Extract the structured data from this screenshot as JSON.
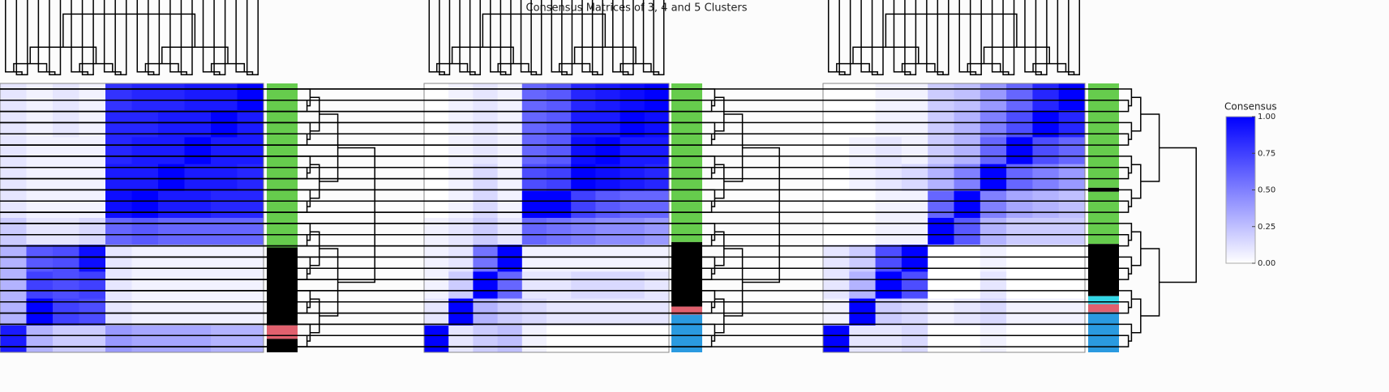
{
  "chart_data": {
    "type": "heatmap",
    "title": "Consensus Matrices of 3, 4 and 5 Clusters",
    "colorscale": {
      "title": "Consensus",
      "colors": [
        "#ffffff",
        "#0000ff"
      ],
      "lim": [
        0,
        1
      ],
      "ticks": [
        {
          "value": 0,
          "label": "0.00"
        },
        {
          "value": 0.25,
          "label": "0.25"
        },
        {
          "value": 0.5,
          "label": "0.50"
        },
        {
          "value": 0.75,
          "label": "0.75"
        },
        {
          "value": 1,
          "label": "1.00"
        }
      ]
    },
    "panels": [
      {
        "matrix": [
          [
            0.1,
            0.05,
            0.1,
            0.05,
            0.8,
            0.85,
            0.85,
            0.9,
            0.9,
            1
          ],
          [
            0.1,
            0.05,
            0.1,
            0.05,
            0.85,
            0.85,
            0.9,
            0.9,
            1,
            0.9
          ],
          [
            0.1,
            0.05,
            0.05,
            0.05,
            0.85,
            0.9,
            0.9,
            1,
            0.9,
            0.9
          ],
          [
            0.1,
            0.05,
            0.05,
            0.05,
            0.9,
            0.9,
            1,
            0.9,
            0.9,
            0.85
          ],
          [
            0.1,
            0.05,
            0.05,
            0.05,
            0.95,
            1,
            0.9,
            0.9,
            0.85,
            0.85
          ],
          [
            0.2,
            0.1,
            0.1,
            0.15,
            0.6,
            0.65,
            0.6,
            0.6,
            0.6,
            0.6
          ],
          [
            0.3,
            0.65,
            0.7,
            0.95,
            0.1,
            0.05,
            0.05,
            0.05,
            0.05,
            0.05
          ],
          [
            0.3,
            0.75,
            0.7,
            0.75,
            0.1,
            0.05,
            0.05,
            0.05,
            0.05,
            0.05
          ],
          [
            0.3,
            1,
            0.75,
            0.7,
            0.1,
            0.05,
            0.05,
            0.05,
            0.05,
            0.05
          ],
          [
            0.9,
            0.3,
            0.2,
            0.2,
            0.4,
            0.35,
            0.35,
            0.35,
            0.3,
            0.3
          ]
        ],
        "clusters": [
          {
            "color": "#66cc4d",
            "size": 61
          },
          {
            "color": "#000000",
            "size": 29
          },
          {
            "color": "#e0606e",
            "size": 5
          },
          {
            "color": "#000000",
            "size": 5
          }
        ]
      },
      {
        "matrix": [
          [
            0,
            0.05,
            0.1,
            0.05,
            0.6,
            0.65,
            0.85,
            0.9,
            0.95,
            1
          ],
          [
            0,
            0.05,
            0.1,
            0.05,
            0.6,
            0.65,
            0.9,
            0.9,
            1,
            0.95
          ],
          [
            0,
            0.05,
            0.1,
            0.05,
            0.6,
            0.65,
            0.95,
            1,
            0.9,
            0.9
          ],
          [
            0,
            0.05,
            0.15,
            0.05,
            0.7,
            0.75,
            1,
            0.95,
            0.9,
            0.85
          ],
          [
            0,
            0.05,
            0.15,
            0.05,
            1,
            1,
            0.75,
            0.65,
            0.6,
            0.6
          ],
          [
            0.05,
            0.1,
            0.2,
            0.1,
            0.6,
            0.55,
            0.5,
            0.45,
            0.45,
            0.4
          ],
          [
            0.05,
            0.1,
            0.55,
            1,
            0.05,
            0.05,
            0.05,
            0.05,
            0.05,
            0.05
          ],
          [
            0.05,
            0.2,
            1,
            0.6,
            0.1,
            0.1,
            0.15,
            0.15,
            0.15,
            0.1
          ],
          [
            0.1,
            1,
            0.3,
            0.2,
            0.15,
            0.1,
            0.1,
            0.1,
            0.1,
            0.1
          ],
          [
            1,
            0.1,
            0.2,
            0.25,
            0.05,
            0,
            0,
            0,
            0,
            0
          ]
        ],
        "clusters": [
          {
            "color": "#66cc4d",
            "size": 59
          },
          {
            "color": "#000000",
            "size": 24
          },
          {
            "color": "#e0606e",
            "size": 3
          },
          {
            "color": "#2a9ae0",
            "size": 14
          }
        ]
      },
      {
        "matrix": [
          [
            0,
            0,
            0.05,
            0.05,
            0.2,
            0.25,
            0.4,
            0.6,
            0.85,
            1
          ],
          [
            0,
            0,
            0.05,
            0.05,
            0.2,
            0.3,
            0.5,
            0.7,
            1,
            0.85
          ],
          [
            0,
            0.05,
            0.1,
            0.05,
            0.2,
            0.3,
            0.6,
            1,
            0.7,
            0.6
          ],
          [
            0,
            0.05,
            0.1,
            0.15,
            0.3,
            0.5,
            1,
            0.6,
            0.5,
            0.4
          ],
          [
            0,
            0,
            0.05,
            0.05,
            0.6,
            1,
            0.5,
            0.35,
            0.3,
            0.25
          ],
          [
            0,
            0,
            0.05,
            0.05,
            1,
            0.65,
            0.3,
            0.2,
            0.2,
            0.2
          ],
          [
            0.1,
            0.2,
            0.7,
            1,
            0,
            0,
            0.05,
            0,
            0,
            0
          ],
          [
            0.1,
            0.3,
            1,
            0.7,
            0,
            0,
            0.1,
            0,
            0,
            0
          ],
          [
            0.05,
            1,
            0.2,
            0.15,
            0.05,
            0.1,
            0.15,
            0.05,
            0.05,
            0.05
          ],
          [
            1,
            0.1,
            0.1,
            0.15,
            0,
            0,
            0.05,
            0,
            0,
            0
          ]
        ],
        "clusters": [
          {
            "color": "#66cc4d",
            "size": 26
          },
          {
            "color": "#000000",
            "size": 1
          },
          {
            "color": "#66cc4d",
            "size": 13
          },
          {
            "color": "#000000",
            "size": 13
          },
          {
            "color": "#33d6e6",
            "size": 2
          },
          {
            "color": "#e0606e",
            "size": 2
          },
          {
            "color": "#2a9ae0",
            "size": 10
          }
        ]
      }
    ]
  }
}
